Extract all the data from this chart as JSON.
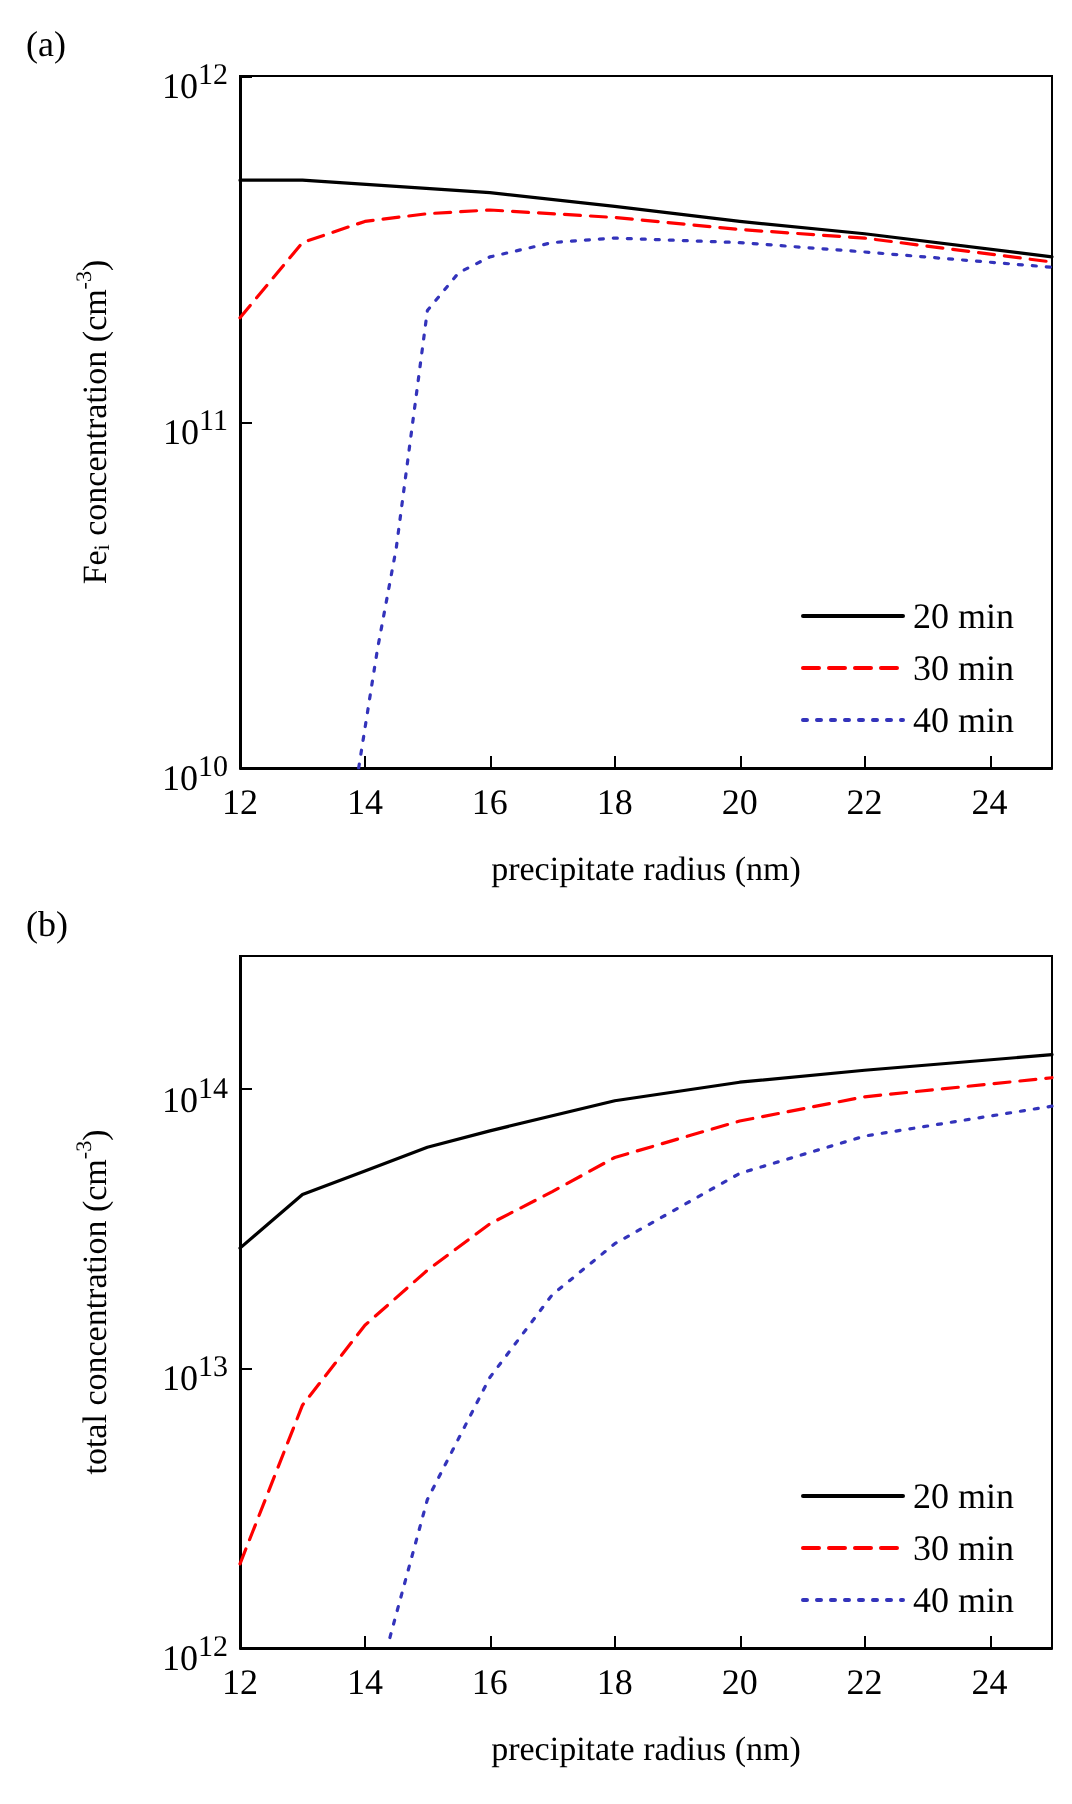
{
  "chart_data": [
    {
      "type": "line",
      "title": "(a)",
      "xlabel": "precipitate radius (nm)",
      "ylabel": "Fe$_{i}$ concentration (cm$^{-3}$)",
      "log": "y",
      "xlim": [
        12,
        25
      ],
      "xticks": [
        12,
        14,
        16,
        18,
        20,
        22,
        24
      ],
      "ylim": [
        10000000000.0,
        1000000000000.0
      ],
      "yticks": [
        {
          "value": 10000000000.0,
          "label": "10$^{10}$"
        },
        {
          "value": 100000000000.0,
          "label": "10$^{11}$"
        },
        {
          "value": 1000000000000.0,
          "label": "10$^{12}$"
        }
      ],
      "legend": "bottom right",
      "grid": false,
      "series": [
        {
          "name": "20 min",
          "color": "#000000",
          "line_style": "solid",
          "x": [
            12,
            13,
            16,
            18,
            20,
            22,
            25
          ],
          "values": [
            500000000000.0,
            500000000000.0,
            460000000000.0,
            420000000000.0,
            380000000000.0,
            350000000000.0,
            300000000000.0
          ]
        },
        {
          "name": "30 min",
          "color": "#ff0000",
          "line_style": "dashed",
          "x": [
            12,
            13,
            14,
            15,
            16,
            18,
            20,
            22,
            25
          ],
          "values": [
            200000000000.0,
            330000000000.0,
            380000000000.0,
            400000000000.0,
            410000000000.0,
            390000000000.0,
            360000000000.0,
            340000000000.0,
            290000000000.0
          ]
        },
        {
          "name": "40 min",
          "color": "#3333bb",
          "line_style": "dotted",
          "x": [
            13.9,
            14.2,
            14.5,
            15,
            15.5,
            16,
            17,
            18,
            20,
            22,
            25
          ],
          "values": [
            10000000000.0,
            22000000000.0,
            43000000000.0,
            210000000000.0,
            270000000000.0,
            300000000000.0,
            330000000000.0,
            340000000000.0,
            330000000000.0,
            310000000000.0,
            280000000000.0
          ]
        }
      ]
    },
    {
      "type": "line",
      "title": "(b)",
      "xlabel": "precipitate radius (nm)",
      "ylabel": "total concentration (cm$^{-3}$)",
      "log": "y",
      "xlim": [
        12,
        25
      ],
      "xticks": [
        12,
        14,
        16,
        18,
        20,
        22,
        24
      ],
      "ylim": [
        1000000000000.0,
        300000000000000.0
      ],
      "yticks": [
        {
          "value": 1000000000000.0,
          "label": "10$^{12}$"
        },
        {
          "value": 10000000000000.0,
          "label": "10$^{13}$"
        },
        {
          "value": 100000000000000.0,
          "label": "10$^{14}$"
        }
      ],
      "legend": "bottom right",
      "grid": false,
      "series": [
        {
          "name": "20 min",
          "color": "#000000",
          "line_style": "solid",
          "x": [
            12,
            13,
            14,
            15,
            16,
            18,
            20,
            22,
            25
          ],
          "values": [
            27000000000000.0,
            42000000000000.0,
            51000000000000.0,
            62000000000000.0,
            71000000000000.0,
            91000000000000.0,
            106000000000000.0,
            117000000000000.0,
            133000000000000.0
          ]
        },
        {
          "name": "30 min",
          "color": "#ff0000",
          "line_style": "dashed",
          "x": [
            12,
            13,
            14,
            15,
            16,
            17,
            18,
            20,
            22,
            25
          ],
          "values": [
            2000000000000.0,
            7400000000000.0,
            14300000000000.0,
            22500000000000.0,
            33000000000000.0,
            43000000000000.0,
            57000000000000.0,
            77000000000000.0,
            94000000000000.0,
            110000000000000.0
          ]
        },
        {
          "name": "40 min",
          "color": "#3333bb",
          "line_style": "dotted",
          "x": [
            14.4,
            15,
            16,
            17,
            18,
            20,
            22,
            25
          ],
          "values": [
            1090000000000.0,
            3400000000000.0,
            9300000000000.0,
            18400000000000.0,
            28000000000000.0,
            50000000000000.0,
            68000000000000.0,
            87000000000000.0
          ]
        }
      ]
    }
  ]
}
